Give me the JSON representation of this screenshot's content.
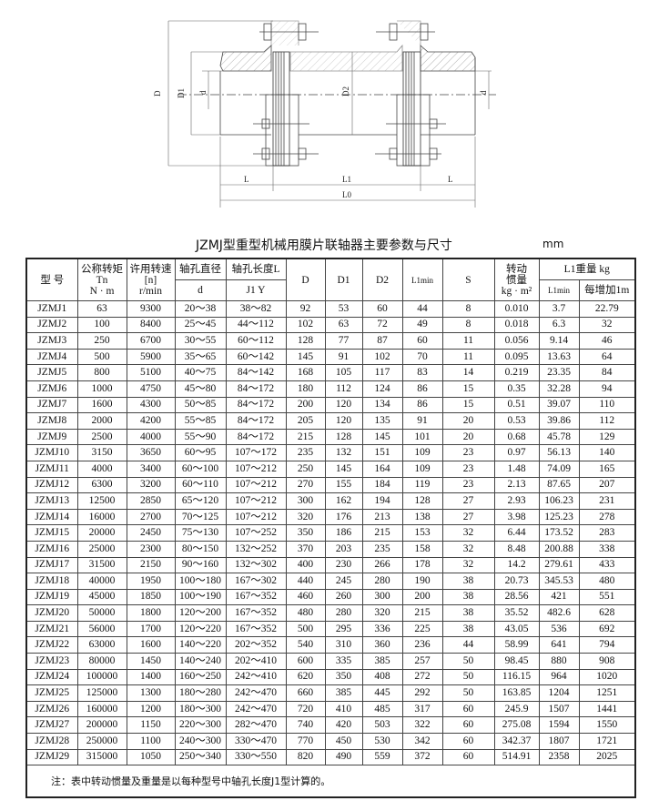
{
  "drawing": {
    "labels": {
      "D": "D",
      "D1": "D1",
      "d_left": "d",
      "D2": "D2",
      "d_right": "d",
      "L_left": "L",
      "L1": "L1",
      "L_right": "L",
      "L0": "L0"
    }
  },
  "title": "JZMJ型重型机械用膜片联轴器主要参数与尺寸",
  "unit": "mm",
  "table": {
    "headers": {
      "model": "型 号",
      "torque": [
        "公称转矩",
        "Tn",
        "N · m"
      ],
      "speed": [
        "许用转速",
        "[n]",
        "r/min"
      ],
      "bore_dia": "轴孔直径",
      "bore_dia_sub": "d",
      "bore_len": "轴孔长度L",
      "bore_len_sub": "J1  Y",
      "D": "D",
      "D1": "D1",
      "D2": "D2",
      "Lmin": "L1min",
      "S": "S",
      "inertia": [
        "转动",
        "惯量",
        "kg · m²"
      ],
      "weight": "L1重量 kg",
      "weight_min": "L1min",
      "weight_add": "每增加1m"
    },
    "rows": [
      [
        "JZMJ1",
        "63",
        "9300",
        "20～38",
        "38～82",
        "92",
        "53",
        "60",
        "44",
        "8",
        "0.010",
        "3.7",
        "22.79"
      ],
      [
        "JZMJ2",
        "100",
        "8400",
        "25～45",
        "44～112",
        "102",
        "63",
        "72",
        "49",
        "8",
        "0.018",
        "6.3",
        "32"
      ],
      [
        "JZMJ3",
        "250",
        "6700",
        "30～55",
        "60～112",
        "128",
        "77",
        "87",
        "60",
        "11",
        "0.056",
        "9.14",
        "46"
      ],
      [
        "JZMJ4",
        "500",
        "5900",
        "35～65",
        "60～142",
        "145",
        "91",
        "102",
        "70",
        "11",
        "0.095",
        "13.63",
        "64"
      ],
      [
        "JZMJ5",
        "800",
        "5100",
        "40～75",
        "84～142",
        "168",
        "105",
        "117",
        "83",
        "14",
        "0.219",
        "23.35",
        "84"
      ],
      [
        "JZMJ6",
        "1000",
        "4750",
        "45～80",
        "84～172",
        "180",
        "112",
        "124",
        "86",
        "15",
        "0.35",
        "32.28",
        "94"
      ],
      [
        "JZMJ7",
        "1600",
        "4300",
        "50～85",
        "84～172",
        "200",
        "120",
        "134",
        "86",
        "15",
        "0.51",
        "39.07",
        "110"
      ],
      [
        "JZMJ8",
        "2000",
        "4200",
        "55～85",
        "84～172",
        "205",
        "120",
        "135",
        "91",
        "20",
        "0.53",
        "39.86",
        "112"
      ],
      [
        "JZMJ9",
        "2500",
        "4000",
        "55～90",
        "84～172",
        "215",
        "128",
        "145",
        "101",
        "20",
        "0.68",
        "45.78",
        "129"
      ],
      [
        "JZMJ10",
        "3150",
        "3650",
        "60～95",
        "107～172",
        "235",
        "132",
        "151",
        "109",
        "23",
        "0.97",
        "56.13",
        "140"
      ],
      [
        "JZMJ11",
        "4000",
        "3400",
        "60～100",
        "107～212",
        "250",
        "145",
        "164",
        "109",
        "23",
        "1.48",
        "74.09",
        "165"
      ],
      [
        "JZMJ12",
        "6300",
        "3200",
        "60～110",
        "107～212",
        "270",
        "155",
        "184",
        "119",
        "23",
        "2.13",
        "87.65",
        "207"
      ],
      [
        "JZMJ13",
        "12500",
        "2850",
        "65～120",
        "107～212",
        "300",
        "162",
        "194",
        "128",
        "27",
        "2.93",
        "106.23",
        "231"
      ],
      [
        "JZMJ14",
        "16000",
        "2700",
        "70～125",
        "107～212",
        "320",
        "176",
        "213",
        "138",
        "27",
        "3.98",
        "125.23",
        "278"
      ],
      [
        "JZMJ15",
        "20000",
        "2450",
        "75～130",
        "107～252",
        "350",
        "186",
        "215",
        "153",
        "32",
        "6.44",
        "173.52",
        "283"
      ],
      [
        "JZMJ16",
        "25000",
        "2300",
        "80～150",
        "132～252",
        "370",
        "203",
        "235",
        "158",
        "32",
        "8.48",
        "200.88",
        "338"
      ],
      [
        "JZMJ17",
        "31500",
        "2150",
        "90～160",
        "132～302",
        "400",
        "230",
        "266",
        "178",
        "32",
        "14.2",
        "279.61",
        "433"
      ],
      [
        "JZMJ18",
        "40000",
        "1950",
        "100～180",
        "167～302",
        "440",
        "245",
        "280",
        "190",
        "38",
        "20.73",
        "345.53",
        "480"
      ],
      [
        "JZMJ19",
        "45000",
        "1850",
        "100～190",
        "167～352",
        "460",
        "260",
        "300",
        "200",
        "38",
        "28.56",
        "421",
        "551"
      ],
      [
        "JZMJ20",
        "50000",
        "1800",
        "120～200",
        "167～352",
        "480",
        "280",
        "320",
        "215",
        "38",
        "35.52",
        "482.6",
        "628"
      ],
      [
        "JZMJ21",
        "56000",
        "1700",
        "120～220",
        "167～352",
        "500",
        "295",
        "336",
        "225",
        "38",
        "43.05",
        "536",
        "692"
      ],
      [
        "JZMJ22",
        "63000",
        "1600",
        "140～220",
        "202～352",
        "540",
        "310",
        "360",
        "236",
        "44",
        "58.99",
        "641",
        "794"
      ],
      [
        "JZMJ23",
        "80000",
        "1450",
        "140～240",
        "202～410",
        "600",
        "335",
        "385",
        "257",
        "50",
        "98.45",
        "880",
        "908"
      ],
      [
        "JZMJ24",
        "100000",
        "1400",
        "160～250",
        "242～410",
        "620",
        "350",
        "408",
        "272",
        "50",
        "116.15",
        "964",
        "1020"
      ],
      [
        "JZMJ25",
        "125000",
        "1300",
        "180～280",
        "242～470",
        "660",
        "385",
        "445",
        "292",
        "50",
        "163.85",
        "1204",
        "1251"
      ],
      [
        "JZMJ26",
        "160000",
        "1200",
        "180～300",
        "242～470",
        "720",
        "410",
        "485",
        "317",
        "60",
        "245.9",
        "1507",
        "1441"
      ],
      [
        "JZMJ27",
        "200000",
        "1150",
        "220～300",
        "282～470",
        "740",
        "420",
        "503",
        "322",
        "60",
        "275.08",
        "1594",
        "1550"
      ],
      [
        "JZMJ28",
        "250000",
        "1100",
        "240～300",
        "330～470",
        "770",
        "450",
        "530",
        "342",
        "60",
        "342.37",
        "1807",
        "1721"
      ],
      [
        "JZMJ29",
        "315000",
        "1050",
        "250～340",
        "330～550",
        "820",
        "490",
        "559",
        "372",
        "60",
        "514.91",
        "2358",
        "2025"
      ]
    ],
    "note": "注：表中转动惯量及重量是以每种型号中轴孔长度J1型计算的。"
  }
}
